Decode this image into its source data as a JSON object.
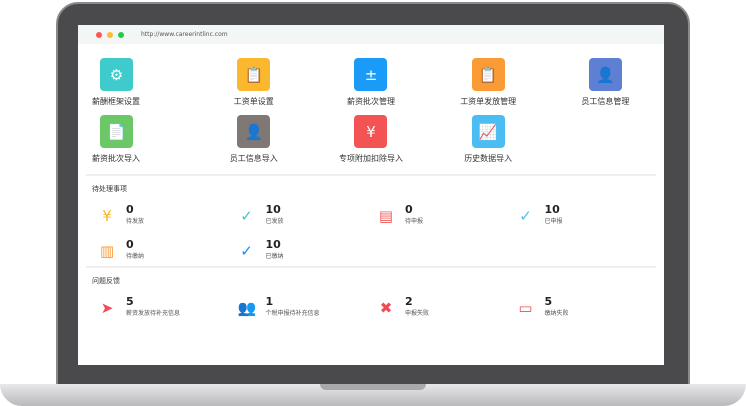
{
  "browser": {
    "url": "http://www.careerintlinc.com"
  },
  "apps": [
    {
      "label": "薪酬框架设置",
      "icon": "monitor-gear-icon",
      "color": "#3fcbcb",
      "g": "⚙"
    },
    {
      "label": "工资单设置",
      "icon": "clipboard-gear-icon",
      "color": "#fbb82e",
      "g": "📋"
    },
    {
      "label": "薪资批次管理",
      "icon": "calculator-icon",
      "color": "#1a9bf7",
      "g": "±"
    },
    {
      "label": "工资单发放管理",
      "icon": "clipboard-money-icon",
      "color": "#fb9b35",
      "g": "📋"
    },
    {
      "label": "员工信息管理",
      "icon": "user-card-icon",
      "color": "#5d80d4",
      "g": "👤"
    },
    {
      "label": "薪资批次导入",
      "icon": "file-import-icon",
      "color": "#6cc866",
      "g": "📄"
    },
    {
      "label": "员工信息导入",
      "icon": "user-add-icon",
      "color": "#7f7874",
      "g": "👤"
    },
    {
      "label": "专项附加扣除导入",
      "icon": "hand-money-icon",
      "color": "#f35352",
      "g": "¥"
    },
    {
      "label": "历史数据导入",
      "icon": "presentation-chart-icon",
      "color": "#4bbdf2",
      "g": "📈"
    }
  ],
  "pending": {
    "title": "待处理事项",
    "items": [
      {
        "count": "0",
        "label": "待发放",
        "icon": "yuan-document-icon",
        "color": "#fbb32e",
        "g": "¥"
      },
      {
        "count": "10",
        "label": "已发放",
        "icon": "check-circle-icon",
        "color": "#3cc9c9",
        "g": "✓"
      },
      {
        "count": "0",
        "label": "待申报",
        "icon": "document-clock-icon",
        "color": "#f35a5a",
        "g": "▤"
      },
      {
        "count": "10",
        "label": "已申报",
        "icon": "check-circle-icon",
        "color": "#4bbdf2",
        "g": "✓"
      },
      {
        "count": "0",
        "label": "待缴纳",
        "icon": "file-money-icon",
        "color": "#fb9b35",
        "g": "▥"
      },
      {
        "count": "10",
        "label": "已缴纳",
        "icon": "check-circle-icon",
        "color": "#1a8cf0",
        "g": "✓"
      }
    ]
  },
  "feedback": {
    "title": "问题反馈",
    "items": [
      {
        "count": "5",
        "label": "薪资发放待补充信息",
        "icon": "paper-plane-icon",
        "color": "#f34a5a",
        "g": "➤"
      },
      {
        "count": "1",
        "label": "个税申报待补充信息",
        "icon": "users-icon",
        "color": "#f34a5a",
        "g": "👥"
      },
      {
        "count": "2",
        "label": "申报失败",
        "icon": "calendar-x-icon",
        "color": "#f34a5a",
        "g": "✖"
      },
      {
        "count": "5",
        "label": "缴纳失败",
        "icon": "wallet-icon",
        "color": "#f34a5a",
        "g": "▭"
      }
    ]
  }
}
